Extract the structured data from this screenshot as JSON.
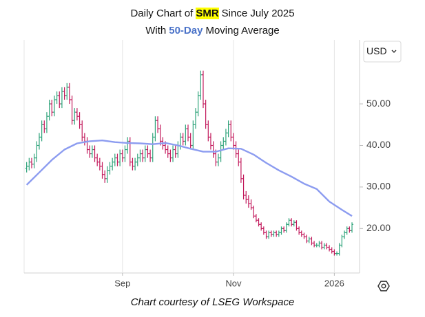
{
  "chart_data": {
    "type": "ohlc",
    "title": {
      "prefix": "Daily Chart of",
      "ticker": "SMR",
      "suffix": "Since July 2025"
    },
    "subtitle": {
      "prefix": "With",
      "highlight": "50-Day",
      "suffix": "Moving Average"
    },
    "footer": "Chart courtesy of LSEG Workspace",
    "currency": "USD",
    "up_color": "#2ea37a",
    "down_color": "#c2185b",
    "ohlc": {
      "open": [
        34.5,
        35,
        36,
        35.5,
        37,
        40,
        42,
        45,
        44,
        47,
        50,
        48,
        51,
        52,
        50,
        53,
        52,
        54,
        51,
        46,
        48,
        47,
        45,
        42,
        41,
        39,
        38,
        39,
        37,
        36,
        35,
        33,
        32,
        34,
        35,
        36,
        37,
        36,
        38,
        37,
        39,
        41,
        36,
        35,
        36,
        37,
        38,
        37,
        39,
        38,
        37,
        42,
        46,
        44,
        41,
        40,
        39,
        38,
        37,
        39,
        38,
        40,
        42,
        41,
        44,
        42,
        40,
        45,
        48,
        52,
        57,
        50,
        45,
        42,
        40,
        38,
        36,
        37,
        40,
        41,
        43,
        45,
        42,
        40,
        38,
        36,
        32,
        28,
        27,
        26,
        25,
        23,
        22,
        21,
        20,
        19,
        18,
        19,
        18.5,
        19,
        18.5,
        19,
        20,
        19.5,
        21,
        22,
        21,
        21.5,
        20,
        19,
        18.5,
        18,
        17,
        17.5,
        16.5,
        16,
        16,
        16.5,
        15.5,
        16,
        15.5,
        15,
        14.5,
        14,
        14,
        16,
        18,
        19,
        20,
        19.5
      ],
      "high": [
        36,
        37,
        37,
        38,
        41,
        43,
        46,
        46,
        48,
        51,
        51,
        52,
        53,
        53,
        54,
        54,
        55,
        55,
        52,
        49,
        49,
        48,
        46,
        43,
        42,
        40,
        40,
        40,
        38,
        37,
        36,
        34,
        35,
        36,
        37,
        38,
        38,
        39,
        39,
        40,
        42,
        42,
        37,
        37,
        38,
        39,
        39,
        40,
        40,
        39,
        43,
        47,
        47,
        45,
        42,
        41,
        40,
        39,
        40,
        40,
        41,
        43,
        43,
        45,
        45,
        43,
        46,
        49,
        53,
        58,
        58,
        51,
        46,
        43,
        41,
        39,
        38,
        41,
        42,
        44,
        46,
        46,
        43,
        41,
        39,
        37,
        33,
        29,
        28,
        27,
        25.5,
        23.5,
        22.5,
        21.5,
        20.5,
        19.5,
        19.5,
        19.5,
        19.5,
        19.5,
        19.5,
        20.5,
        20.5,
        21.5,
        22.5,
        22.5,
        22,
        22,
        20.5,
        19.5,
        19,
        18.5,
        18,
        18,
        17,
        16.5,
        17,
        17,
        16.5,
        16.5,
        16,
        15.5,
        15,
        14.5,
        16.5,
        18.5,
        19.5,
        20.5,
        20.5,
        21.5
      ],
      "low": [
        33.5,
        34,
        34.5,
        34.5,
        36,
        39,
        41,
        43,
        43,
        46,
        47,
        47,
        50,
        49,
        49,
        51,
        51,
        50,
        45,
        45,
        46,
        44,
        41,
        40,
        38,
        37,
        37,
        36,
        35,
        34,
        32,
        31,
        31,
        33,
        34,
        35,
        35,
        35,
        36,
        36,
        38,
        35,
        34,
        34,
        35,
        36,
        36,
        36,
        37,
        36,
        36,
        41,
        43,
        40,
        39,
        38,
        37,
        36,
        36,
        37,
        37,
        39,
        40,
        40,
        41,
        39,
        39,
        44,
        47,
        51,
        49,
        44,
        41,
        39,
        37,
        35,
        35,
        36,
        39,
        40,
        42,
        41,
        39,
        37,
        35,
        31,
        27,
        26,
        25,
        24.5,
        22.5,
        21.5,
        20.5,
        19.5,
        18.5,
        17.5,
        17.5,
        18,
        18,
        18,
        18,
        18.5,
        19,
        19,
        20.5,
        20.5,
        20.5,
        19.5,
        18.5,
        18,
        17.5,
        16.5,
        16.5,
        16,
        15.5,
        15.5,
        15.5,
        15,
        15,
        15,
        14.5,
        14,
        13.5,
        13.5,
        13.5,
        15.5,
        17.5,
        18.5,
        19,
        19
      ],
      "close": [
        35,
        36,
        35.5,
        37,
        40,
        42,
        45,
        44,
        47,
        50,
        48,
        51,
        52,
        50,
        53,
        52,
        54,
        51,
        46,
        48,
        47,
        45,
        42,
        41,
        39,
        38,
        39,
        37,
        36,
        35,
        33,
        32,
        34,
        35,
        36,
        37,
        36,
        38,
        37,
        39,
        41,
        36,
        35,
        36,
        37,
        38,
        37,
        39,
        38,
        37,
        42,
        46,
        44,
        41,
        40,
        39,
        38,
        37,
        39,
        38,
        40,
        42,
        41,
        44,
        42,
        40,
        45,
        48,
        52,
        57,
        50,
        45,
        42,
        40,
        38,
        36,
        37,
        40,
        41,
        43,
        45,
        42,
        40,
        38,
        36,
        32,
        28,
        27,
        26,
        25,
        23,
        22,
        21,
        20,
        19,
        18,
        19,
        18.5,
        19,
        18.5,
        19,
        20,
        19.5,
        21,
        22,
        21,
        21.5,
        20,
        19,
        18.5,
        18,
        17,
        17.5,
        16.5,
        16,
        16,
        16.5,
        15.5,
        16,
        15.5,
        15,
        14.5,
        14,
        14,
        16,
        18,
        19,
        20,
        19.5,
        21
      ]
    },
    "ma": {
      "color": "#8c9cf0",
      "x": [
        0,
        5,
        10,
        15,
        20,
        25,
        30,
        35,
        40,
        45,
        50,
        55,
        60,
        65,
        70,
        75,
        80,
        85,
        90,
        95,
        100,
        105,
        110,
        115,
        120,
        125,
        129
      ],
      "values": [
        30.5,
        33.5,
        36.5,
        39,
        40.5,
        41,
        41.2,
        40.8,
        40.6,
        40.5,
        40.3,
        40.6,
        40,
        39.2,
        38.5,
        38.5,
        39.3,
        39.2,
        37.8,
        35.8,
        34,
        32.5,
        30.8,
        29.5,
        26.5,
        24.5,
        23
      ]
    },
    "xlim": [
      -1,
      132
    ],
    "xticks": [
      {
        "value": 38,
        "label": "Sep"
      },
      {
        "value": 82,
        "label": "Nov"
      },
      {
        "value": 122,
        "label": "2026"
      }
    ],
    "ylim": [
      9.3,
      65.4
    ],
    "yticks": [
      {
        "value": 20,
        "label": "20.00"
      },
      {
        "value": 30,
        "label": "30.00"
      },
      {
        "value": 40,
        "label": "40.00"
      },
      {
        "value": 50,
        "label": "50.00"
      }
    ]
  }
}
